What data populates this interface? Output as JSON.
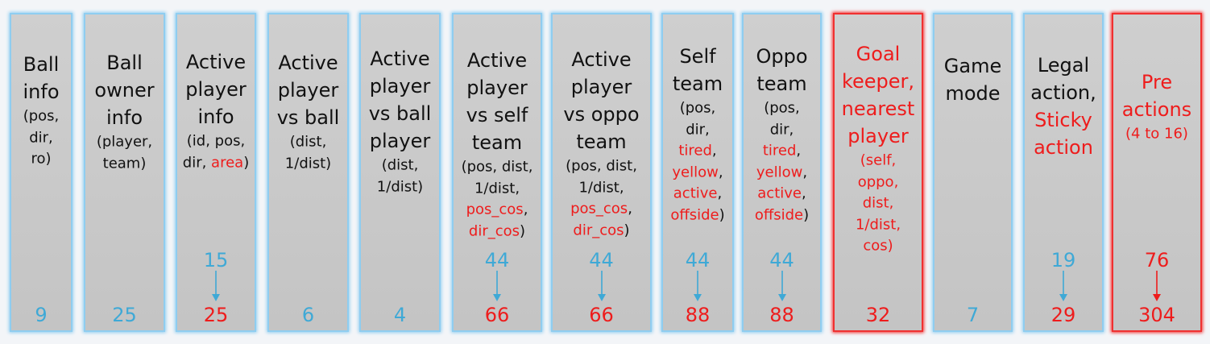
{
  "columns": [
    {
      "title": [
        [
          {
            "text": "Ball"
          }
        ],
        [
          {
            "text": "info"
          }
        ]
      ],
      "detail": [
        [
          {
            "text": "(pos,"
          }
        ],
        [
          {
            "text": "dir,"
          }
        ],
        [
          {
            "text": "ro)"
          }
        ]
      ],
      "after": "9",
      "after_color": "#3fa9d6",
      "border": "#8fcdf0"
    },
    {
      "title": [
        [
          {
            "text": "Ball"
          }
        ],
        [
          {
            "text": "owner"
          }
        ],
        [
          {
            "text": "info"
          }
        ]
      ],
      "detail": [
        [
          {
            "text": "(player,"
          }
        ],
        [
          {
            "text": "team)"
          }
        ]
      ],
      "after": "25",
      "after_color": "#3fa9d6",
      "border": "#8fcdf0"
    },
    {
      "title": [
        [
          {
            "text": "Active"
          }
        ],
        [
          {
            "text": "player"
          }
        ],
        [
          {
            "text": "info"
          }
        ]
      ],
      "detail": [
        [
          {
            "text": "(id, pos,"
          }
        ],
        [
          {
            "text": "dir, "
          },
          {
            "text": "area",
            "color": "#ee1c1c"
          },
          {
            "text": ")"
          }
        ]
      ],
      "before": "15",
      "before_color": "#3fa9d6",
      "after": "25",
      "after_color": "#ee1c1c",
      "border": "#8fcdf0"
    },
    {
      "title": [
        [
          {
            "text": "Active"
          }
        ],
        [
          {
            "text": "player"
          }
        ],
        [
          {
            "text": "vs ball"
          }
        ]
      ],
      "detail": [
        [
          {
            "text": "(dist,"
          }
        ],
        [
          {
            "text": "1/dist)"
          }
        ]
      ],
      "after": "6",
      "after_color": "#3fa9d6",
      "border": "#8fcdf0"
    },
    {
      "title": [
        [
          {
            "text": "Active"
          }
        ],
        [
          {
            "text": "player"
          }
        ],
        [
          {
            "text": "vs ball"
          }
        ],
        [
          {
            "text": "player"
          }
        ]
      ],
      "detail": [
        [
          {
            "text": "(dist,"
          }
        ],
        [
          {
            "text": "1/dist)"
          }
        ]
      ],
      "after": "4",
      "after_color": "#3fa9d6",
      "border": "#8fcdf0"
    },
    {
      "title": [
        [
          {
            "text": "Active"
          }
        ],
        [
          {
            "text": "player"
          }
        ],
        [
          {
            "text": "vs self"
          }
        ],
        [
          {
            "text": "team"
          }
        ]
      ],
      "detail": [
        [
          {
            "text": "(pos, dist,"
          }
        ],
        [
          {
            "text": "1/dist,"
          }
        ],
        [
          {
            "text": "pos_cos",
            "color": "#ee1c1c"
          },
          {
            "text": ","
          }
        ],
        [
          {
            "text": "dir_cos",
            "color": "#ee1c1c"
          },
          {
            "text": ")"
          }
        ]
      ],
      "before": "44",
      "before_color": "#3fa9d6",
      "after": "66",
      "after_color": "#ee1c1c",
      "border": "#8fcdf0"
    },
    {
      "title": [
        [
          {
            "text": "Active"
          }
        ],
        [
          {
            "text": "player"
          }
        ],
        [
          {
            "text": "vs oppo"
          }
        ],
        [
          {
            "text": "team"
          }
        ]
      ],
      "detail": [
        [
          {
            "text": "(pos, dist,"
          }
        ],
        [
          {
            "text": "1/dist,"
          }
        ],
        [
          {
            "text": "pos_cos",
            "color": "#ee1c1c"
          },
          {
            "text": ","
          }
        ],
        [
          {
            "text": "dir_cos",
            "color": "#ee1c1c"
          },
          {
            "text": ")"
          }
        ]
      ],
      "before": "44",
      "before_color": "#3fa9d6",
      "after": "66",
      "after_color": "#ee1c1c",
      "border": "#8fcdf0"
    },
    {
      "title": [
        [
          {
            "text": "Self"
          }
        ],
        [
          {
            "text": "team"
          }
        ]
      ],
      "detail": [
        [
          {
            "text": "(pos,"
          }
        ],
        [
          {
            "text": "dir,"
          }
        ],
        [
          {
            "text": "tired",
            "color": "#ee1c1c"
          },
          {
            "text": ","
          }
        ],
        [
          {
            "text": "yellow",
            "color": "#ee1c1c"
          },
          {
            "text": ","
          }
        ],
        [
          {
            "text": "active",
            "color": "#ee1c1c"
          },
          {
            "text": ","
          }
        ],
        [
          {
            "text": "offside",
            "color": "#ee1c1c"
          },
          {
            "text": ")"
          }
        ]
      ],
      "before": "44",
      "before_color": "#3fa9d6",
      "after": "88",
      "after_color": "#ee1c1c",
      "border": "#8fcdf0"
    },
    {
      "title": [
        [
          {
            "text": "Oppo"
          }
        ],
        [
          {
            "text": "team"
          }
        ]
      ],
      "detail": [
        [
          {
            "text": "(pos,"
          }
        ],
        [
          {
            "text": "dir,"
          }
        ],
        [
          {
            "text": "tired",
            "color": "#ee1c1c"
          },
          {
            "text": ","
          }
        ],
        [
          {
            "text": "yellow",
            "color": "#ee1c1c"
          },
          {
            "text": ","
          }
        ],
        [
          {
            "text": "active",
            "color": "#ee1c1c"
          },
          {
            "text": ","
          }
        ],
        [
          {
            "text": "offside",
            "color": "#ee1c1c"
          },
          {
            "text": ")"
          }
        ]
      ],
      "before": "44",
      "before_color": "#3fa9d6",
      "after": "88",
      "after_color": "#ee1c1c",
      "border": "#8fcdf0"
    },
    {
      "title": [
        [
          {
            "text": "Goal",
            "color": "#ee1c1c"
          }
        ],
        [
          {
            "text": "keeper,",
            "color": "#ee1c1c"
          }
        ],
        [
          {
            "text": "nearest",
            "color": "#ee1c1c"
          }
        ],
        [
          {
            "text": "player",
            "color": "#ee1c1c"
          }
        ]
      ],
      "detail": [
        [
          {
            "text": "(self,",
            "color": "#ee1c1c"
          }
        ],
        [
          {
            "text": "oppo,",
            "color": "#ee1c1c"
          }
        ],
        [
          {
            "text": "dist,",
            "color": "#ee1c1c"
          }
        ],
        [
          {
            "text": "1/dist,",
            "color": "#ee1c1c"
          }
        ],
        [
          {
            "text": "cos)",
            "color": "#ee1c1c"
          }
        ]
      ],
      "after": "32",
      "after_color": "#ee1c1c",
      "border": "#f03030"
    },
    {
      "title": [
        [
          {
            "text": "Game"
          }
        ],
        [
          {
            "text": "mode"
          }
        ]
      ],
      "detail": [],
      "after": "7",
      "after_color": "#3fa9d6",
      "border": "#8fcdf0"
    },
    {
      "title": [
        [
          {
            "text": "Legal"
          }
        ],
        [
          {
            "text": "action,"
          }
        ],
        [
          {
            "text": "Sticky",
            "color": "#ee1c1c"
          }
        ],
        [
          {
            "text": "action",
            "color": "#ee1c1c"
          }
        ]
      ],
      "detail": [],
      "before": "19",
      "before_color": "#3fa9d6",
      "after": "29",
      "after_color": "#ee1c1c",
      "border": "#8fcdf0"
    },
    {
      "title": [
        [
          {
            "text": "Pre",
            "color": "#ee1c1c"
          }
        ],
        [
          {
            "text": "actions",
            "color": "#ee1c1c"
          }
        ]
      ],
      "detail": [
        [
          {
            "text": "(4 to 16)",
            "color": "#ee1c1c"
          }
        ]
      ],
      "before": "76",
      "before_color": "#ee1c1c",
      "after": "304",
      "after_color": "#ee1c1c",
      "border": "#f03030"
    }
  ]
}
